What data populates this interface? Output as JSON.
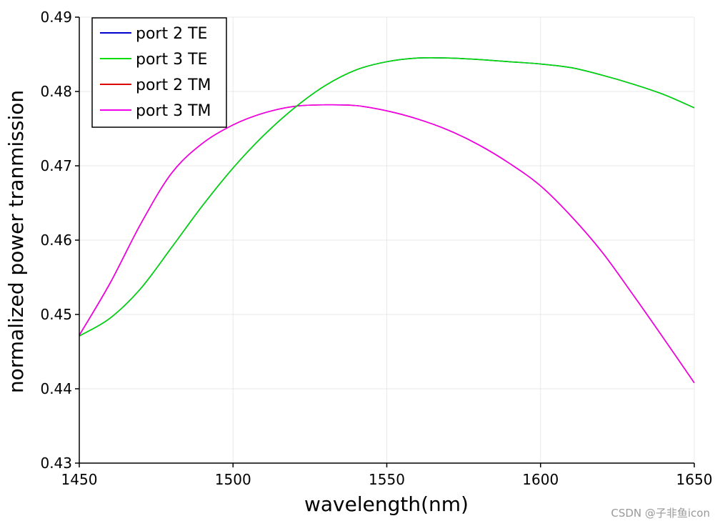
{
  "chart_data": {
    "type": "line",
    "title": "",
    "xlabel": "wavelength(nm)",
    "ylabel": "normalized power tranmission",
    "xlim": [
      1450,
      1650
    ],
    "ylim": [
      0.43,
      0.49
    ],
    "xticks": [
      "1450",
      "1500",
      "1550",
      "1600",
      "1650"
    ],
    "yticks": [
      "0.43",
      "0.44",
      "0.45",
      "0.46",
      "0.47",
      "0.48",
      "0.49"
    ],
    "grid": true,
    "legend_position": "top-left",
    "x": [
      1450,
      1460,
      1470,
      1480,
      1490,
      1500,
      1510,
      1520,
      1530,
      1540,
      1550,
      1560,
      1570,
      1580,
      1590,
      1600,
      1610,
      1620,
      1630,
      1640,
      1650
    ],
    "series": [
      {
        "name": "port 2 TE",
        "color": "#0000cc",
        "values": [
          0.4471,
          0.4495,
          0.4535,
          0.459,
          0.4646,
          0.4697,
          0.4741,
          0.4778,
          0.4808,
          0.4829,
          0.484,
          0.4845,
          0.4845,
          0.4843,
          0.484,
          0.4837,
          0.4832,
          0.4822,
          0.481,
          0.4796,
          0.4778
        ]
      },
      {
        "name": "port 3 TE",
        "color": "#00dd00",
        "values": [
          0.4471,
          0.4495,
          0.4535,
          0.459,
          0.4646,
          0.4697,
          0.4741,
          0.4778,
          0.4808,
          0.4829,
          0.484,
          0.4845,
          0.4845,
          0.4843,
          0.484,
          0.4837,
          0.4832,
          0.4822,
          0.481,
          0.4796,
          0.4778
        ]
      },
      {
        "name": "port 2 TM",
        "color": "#dd0000",
        "values": [
          0.4472,
          0.4542,
          0.4622,
          0.469,
          0.473,
          0.4755,
          0.4771,
          0.478,
          0.4782,
          0.4781,
          0.4774,
          0.4763,
          0.4748,
          0.4728,
          0.4703,
          0.4673,
          0.4632,
          0.4584,
          0.4527,
          0.4468,
          0.4408
        ]
      },
      {
        "name": "port 3 TM",
        "color": "#ee00ee",
        "values": [
          0.4472,
          0.4542,
          0.4622,
          0.469,
          0.473,
          0.4755,
          0.4771,
          0.478,
          0.4782,
          0.4781,
          0.4774,
          0.4763,
          0.4748,
          0.4728,
          0.4703,
          0.4673,
          0.4632,
          0.4584,
          0.4527,
          0.4468,
          0.4408
        ]
      }
    ]
  },
  "watermark": "CSDN @子非鱼icon"
}
